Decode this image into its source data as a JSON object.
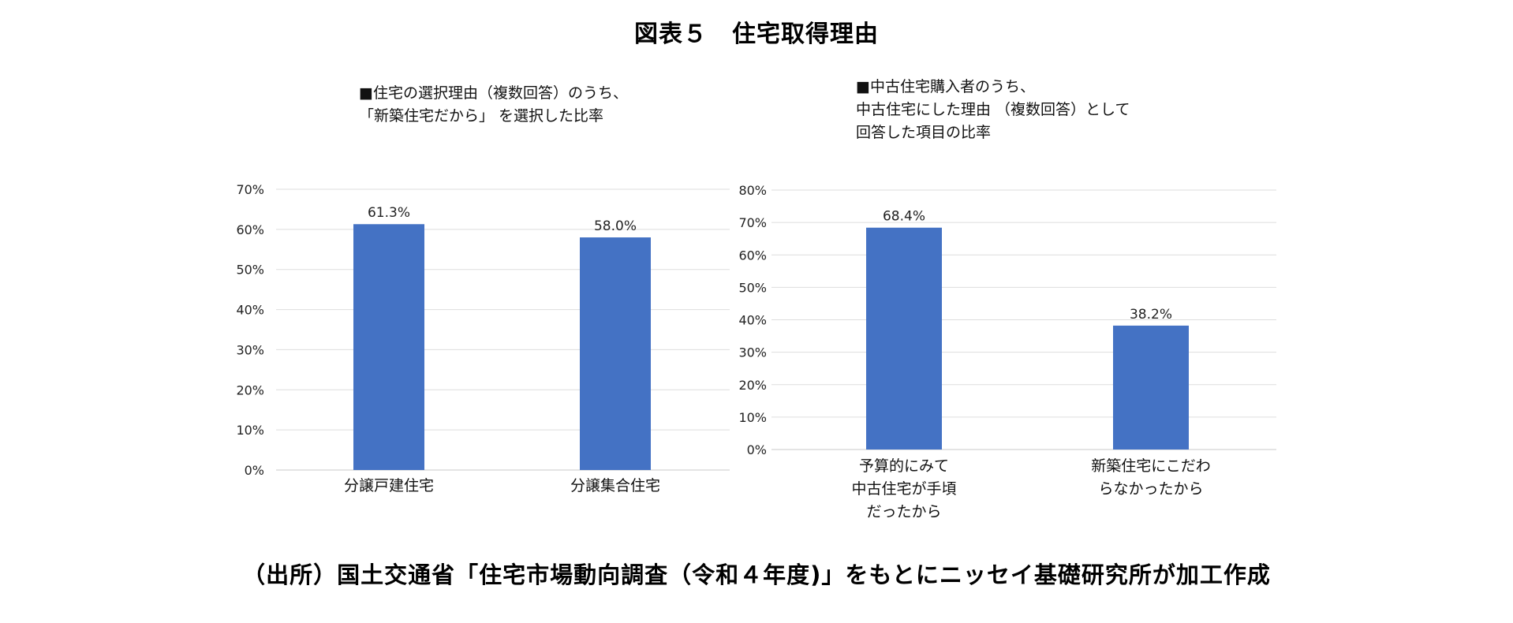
{
  "figure": {
    "title": "図表５　住宅取得理由",
    "source": "（出所）国土交通省「住宅市場動向調査（令和４年度)」をもとにニッセイ基礎研究所が加工作成"
  },
  "chart_data": [
    {
      "type": "bar",
      "title": "■住宅の選択理由（複数回答）のうち、\n「新築住宅だから」 を選択した比率",
      "categories": [
        "分譲戸建住宅",
        "分譲集合住宅"
      ],
      "values": [
        61.3,
        58.0
      ],
      "value_labels": [
        "61.3%",
        "58.0%"
      ],
      "ylim": [
        0,
        70
      ],
      "yticks": [
        "0%",
        "10%",
        "20%",
        "30%",
        "40%",
        "50%",
        "60%",
        "70%"
      ],
      "xlabel": "",
      "ylabel": "",
      "grid": true,
      "color": "#4472c4"
    },
    {
      "type": "bar",
      "title": "■中古住宅購入者のうち、\n中古住宅にした理由 （複数回答）として\n回答した項目の比率",
      "categories": [
        "予算的にみて\n中古住宅が手頃\nだったから",
        "新築住宅にこだわ\nらなかったから"
      ],
      "values": [
        68.4,
        38.2
      ],
      "value_labels": [
        "68.4%",
        "38.2%"
      ],
      "ylim": [
        0,
        80
      ],
      "yticks": [
        "0%",
        "10%",
        "20%",
        "30%",
        "40%",
        "50%",
        "60%",
        "70%",
        "80%"
      ],
      "xlabel": "",
      "ylabel": "",
      "grid": true,
      "color": "#4472c4"
    }
  ]
}
